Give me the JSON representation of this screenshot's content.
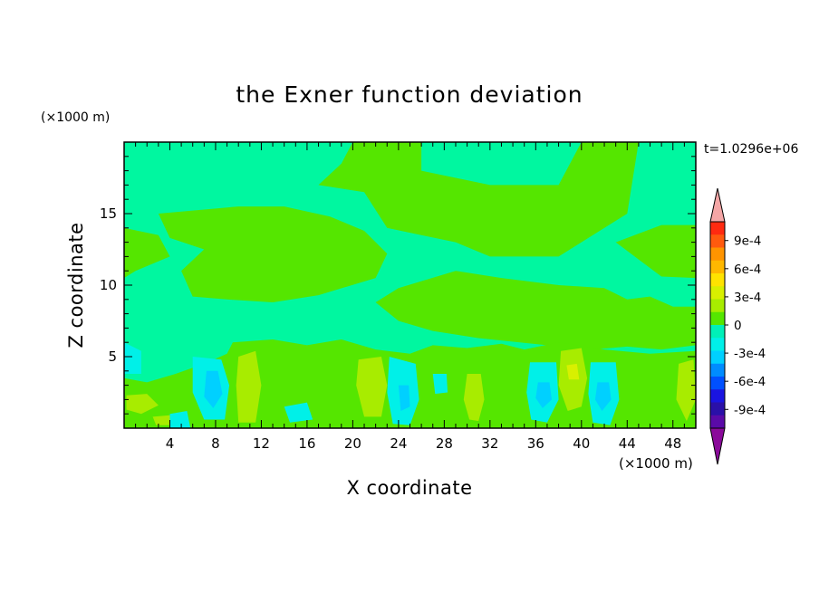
{
  "chart_data": {
    "type": "heatmap",
    "title": "the Exner function deviation",
    "xlabel": "X coordinate",
    "ylabel": "Z coordinate",
    "x_unit": "(×1000 m)",
    "y_unit": "(×1000 m)",
    "time_label": "t=1.0296e+06",
    "xlim": [
      0,
      50
    ],
    "ylim": [
      0,
      20
    ],
    "x_ticks": [
      4,
      8,
      12,
      16,
      20,
      24,
      28,
      32,
      36,
      40,
      44,
      48
    ],
    "y_ticks": [
      5,
      10,
      15
    ],
    "colorbar": {
      "levels": [
        "9e-4",
        "6e-4",
        "3e-4",
        "0",
        "-3e-4",
        "-6e-4",
        "-9e-4"
      ],
      "min": -0.0011,
      "max": 0.0011,
      "colors": {
        "above_max": "#f4a6a6",
        "below_min": "#8a0a9a",
        "upper": [
          "#ff2a10",
          "#ff5a0e",
          "#ff9400",
          "#ffb800",
          "#ffe300",
          "#d8f000",
          "#a8ec00",
          "#55e600"
        ],
        "lower": [
          "#00f0b8",
          "#00f0e8",
          "#00d0ff",
          "#008cff",
          "#0050ff",
          "#1a14e0",
          "#2a10a8",
          "#5a0aa8"
        ]
      }
    },
    "field": {
      "background_color": "#00f7a0",
      "positive_color": "#55e600",
      "strong_positive_color": "#a8ec00",
      "peak_positive_color": "#d8f000",
      "negative_color": "#00f0e8",
      "strong_negative_color": "#00d0ff",
      "positive_regions": [
        {
          "points": [
            [
              20,
              20
            ],
            [
              26,
              20
            ],
            [
              26,
              18
            ],
            [
              32,
              17
            ],
            [
              38,
              17
            ],
            [
              40,
              20
            ],
            [
              45,
              20
            ],
            [
              44,
              15
            ],
            [
              38,
              12
            ],
            [
              32,
              12
            ],
            [
              29,
              13
            ],
            [
              26,
              13.5
            ],
            [
              23,
              14
            ],
            [
              21,
              16.5
            ],
            [
              17,
              17
            ],
            [
              19,
              18.5
            ]
          ]
        },
        {
          "points": [
            [
              3,
              15
            ],
            [
              10,
              15.5
            ],
            [
              14,
              15.5
            ],
            [
              18,
              14.8
            ],
            [
              21,
              13.8
            ],
            [
              23,
              12.2
            ],
            [
              22,
              10.5
            ],
            [
              17,
              9.3
            ],
            [
              13,
              8.8
            ],
            [
              9,
              9
            ],
            [
              6,
              9.2
            ],
            [
              5,
              11
            ],
            [
              7,
              12.5
            ],
            [
              4,
              13.3
            ]
          ]
        },
        {
          "points": [
            [
              0,
              14
            ],
            [
              3,
              13.5
            ],
            [
              4,
              12
            ],
            [
              1,
              11
            ],
            [
              0,
              10.5
            ]
          ]
        },
        {
          "points": [
            [
              29,
              11
            ],
            [
              33,
              10.5
            ],
            [
              38,
              10
            ],
            [
              42,
              9.8
            ],
            [
              44,
              9
            ],
            [
              46,
              9.2
            ],
            [
              48,
              8.5
            ],
            [
              50,
              8.5
            ],
            [
              50,
              5.8
            ],
            [
              47,
              5.5
            ],
            [
              44,
              5.7
            ],
            [
              41,
              5.5
            ],
            [
              37,
              5.8
            ],
            [
              31,
              6.3
            ],
            [
              27,
              6.8
            ],
            [
              24,
              7.5
            ],
            [
              22,
              8.8
            ],
            [
              24,
              9.8
            ]
          ]
        },
        {
          "points": [
            [
              43,
              13
            ],
            [
              47,
              14.2
            ],
            [
              50,
              14.2
            ],
            [
              50,
              10.5
            ],
            [
              47,
              10.6
            ],
            [
              45,
              11.8
            ]
          ]
        },
        {
          "points": [
            [
              9.5,
              6
            ],
            [
              13,
              6.2
            ],
            [
              16,
              5.8
            ],
            [
              19,
              6.2
            ],
            [
              22,
              5.5
            ],
            [
              25,
              5.2
            ],
            [
              27,
              5.8
            ],
            [
              30,
              5.6
            ],
            [
              33,
              5.9
            ],
            [
              35,
              5.5
            ],
            [
              38,
              6
            ],
            [
              42,
              5.5
            ],
            [
              46,
              5.2
            ],
            [
              50,
              5.4
            ],
            [
              50,
              0
            ],
            [
              0,
              0
            ],
            [
              0,
              3.5
            ],
            [
              2,
              3.2
            ],
            [
              4.5,
              3.8
            ],
            [
              7,
              4.5
            ],
            [
              9,
              5.2
            ]
          ]
        }
      ],
      "strong_positive_regions": [
        {
          "points": [
            [
              10,
              5
            ],
            [
              11.5,
              5.4
            ],
            [
              12,
              3
            ],
            [
              11.5,
              0.4
            ],
            [
              10,
              0.4
            ],
            [
              9.8,
              3
            ]
          ]
        },
        {
          "points": [
            [
              20.5,
              4.8
            ],
            [
              22.5,
              5
            ],
            [
              23,
              3
            ],
            [
              22.5,
              0.8
            ],
            [
              21,
              0.8
            ],
            [
              20.3,
              3
            ]
          ]
        },
        {
          "points": [
            [
              30,
              3.8
            ],
            [
              31.2,
              3.8
            ],
            [
              31.5,
              2
            ],
            [
              31,
              0.5
            ],
            [
              30.2,
              0.6
            ],
            [
              29.7,
              2
            ]
          ]
        },
        {
          "points": [
            [
              38.2,
              5.4
            ],
            [
              40,
              5.6
            ],
            [
              40.5,
              3.5
            ],
            [
              40,
              1.5
            ],
            [
              38.8,
              1.2
            ],
            [
              38,
              3
            ]
          ]
        },
        {
          "points": [
            [
              0.2,
              2.3
            ],
            [
              2,
              2.4
            ],
            [
              3,
              1.6
            ],
            [
              1.5,
              1
            ],
            [
              0.2,
              1.3
            ]
          ]
        },
        {
          "points": [
            [
              2.5,
              0.8
            ],
            [
              4,
              0.9
            ],
            [
              4.4,
              0.2
            ],
            [
              2.8,
              0.2
            ]
          ]
        },
        {
          "points": [
            [
              48.5,
              4.5
            ],
            [
              49.8,
              4.8
            ],
            [
              50,
              2
            ],
            [
              49.2,
              0.5
            ],
            [
              48.3,
              2
            ]
          ]
        }
      ],
      "peak_positive_regions": [
        {
          "points": [
            [
              38.7,
              4.4
            ],
            [
              39.6,
              4.5
            ],
            [
              39.8,
              3.4
            ],
            [
              38.9,
              3.4
            ]
          ]
        }
      ],
      "negative_regions": [
        {
          "points": [
            [
              6,
              5
            ],
            [
              8.5,
              4.8
            ],
            [
              9.2,
              3
            ],
            [
              8.8,
              0.6
            ],
            [
              7,
              0.6
            ],
            [
              6,
              2.5
            ]
          ]
        },
        {
          "points": [
            [
              23.2,
              5
            ],
            [
              25.5,
              4.5
            ],
            [
              25.8,
              2
            ],
            [
              25,
              0.2
            ],
            [
              23.5,
              0.3
            ],
            [
              23,
              2.5
            ]
          ]
        },
        {
          "points": [
            [
              35.5,
              4.6
            ],
            [
              37.8,
              4.6
            ],
            [
              38,
              2
            ],
            [
              37,
              0.4
            ],
            [
              35.6,
              0.6
            ],
            [
              35.2,
              2.5
            ]
          ]
        },
        {
          "points": [
            [
              40.8,
              4.6
            ],
            [
              43,
              4.6
            ],
            [
              43.3,
              2
            ],
            [
              42.5,
              0.2
            ],
            [
              41,
              0.4
            ],
            [
              40.6,
              2.4
            ]
          ]
        },
        {
          "points": [
            [
              0,
              6
            ],
            [
              1.5,
              5.4
            ],
            [
              1.5,
              3.8
            ],
            [
              0,
              3.8
            ]
          ]
        },
        {
          "points": [
            [
              4,
              1
            ],
            [
              5.5,
              1.2
            ],
            [
              5.8,
              0
            ],
            [
              4,
              0
            ]
          ]
        },
        {
          "points": [
            [
              27,
              3.8
            ],
            [
              28.2,
              3.8
            ],
            [
              28.3,
              2.5
            ],
            [
              27.2,
              2.4
            ]
          ]
        },
        {
          "points": [
            [
              14,
              1.5
            ],
            [
              16,
              1.8
            ],
            [
              16.5,
              0.6
            ],
            [
              14.5,
              0.4
            ]
          ]
        }
      ],
      "strong_negative_regions": [
        {
          "points": [
            [
              7.2,
              4
            ],
            [
              8.2,
              4
            ],
            [
              8.6,
              2.4
            ],
            [
              7.8,
              1.4
            ],
            [
              7,
              2.2
            ]
          ]
        },
        {
          "points": [
            [
              36.2,
              3.2
            ],
            [
              37.2,
              3.2
            ],
            [
              37.4,
              2
            ],
            [
              36.6,
              1.4
            ],
            [
              36,
              2.1
            ]
          ]
        },
        {
          "points": [
            [
              41.4,
              3.2
            ],
            [
              42.4,
              3.2
            ],
            [
              42.6,
              2
            ],
            [
              41.8,
              1.2
            ],
            [
              41.2,
              2
            ]
          ]
        },
        {
          "points": [
            [
              24,
              3
            ],
            [
              24.9,
              3
            ],
            [
              25,
              1.5
            ],
            [
              24.2,
              1.2
            ]
          ]
        }
      ]
    }
  }
}
